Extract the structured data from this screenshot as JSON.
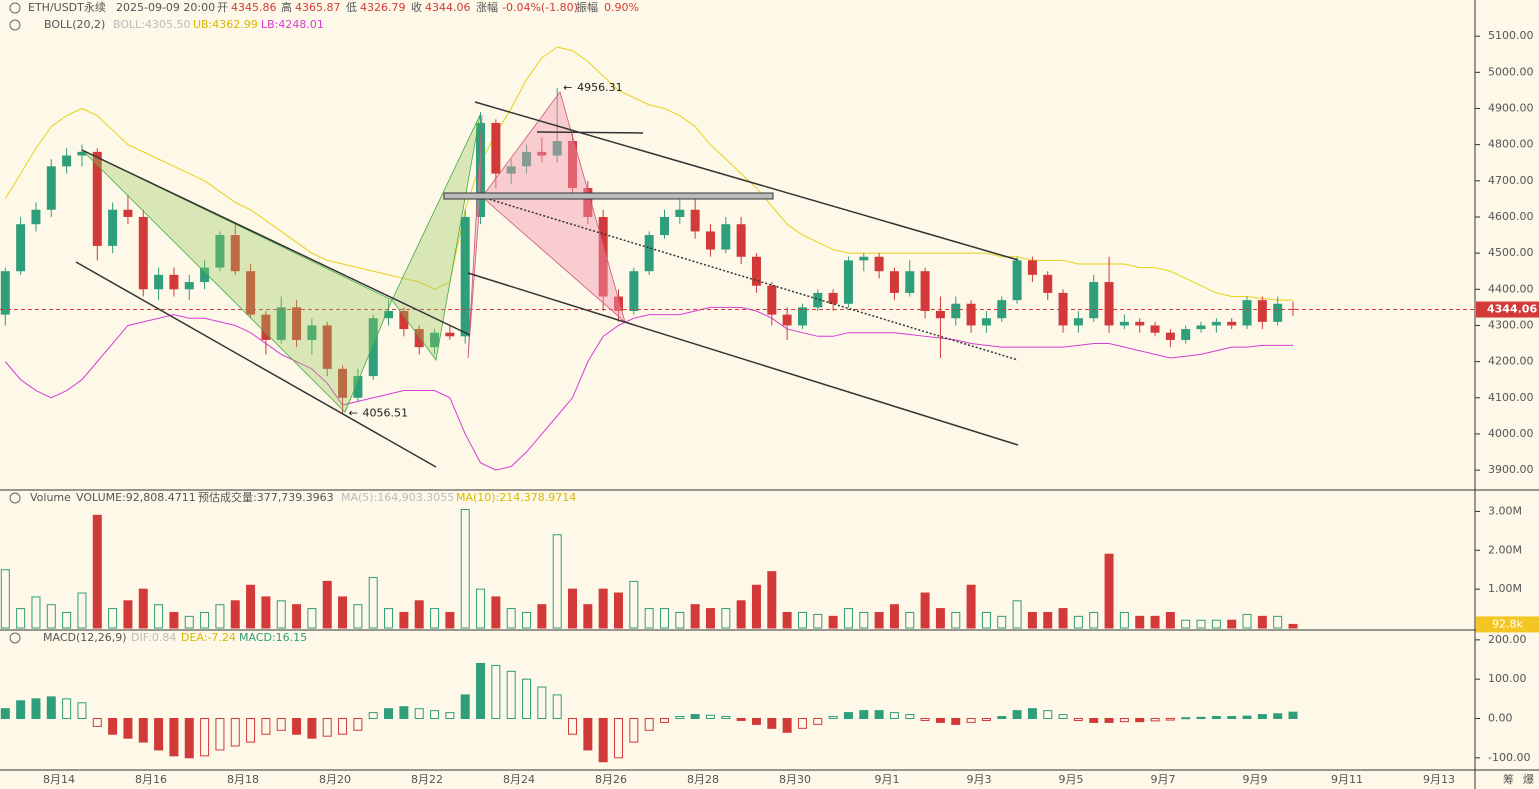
{
  "chart_data": [
    {
      "type": "candlestick",
      "symbol": "ETH/USDT永续",
      "time": "2025-09-09 20:00",
      "open_label": "开",
      "high_label": "高",
      "low_label": "低",
      "close_label": "收",
      "change_label": "涨幅",
      "change": "-0.04%(-1.80)",
      "amplitude_label": "振幅",
      "amplitude": "0.90%",
      "indicator": "BOLL(20,2)",
      "boll": "BOLL:4305.50",
      "ub": "UB:4362.99",
      "lb": "LB:4248.01",
      "up_color": "#2f9e7a",
      "down_color": "#d23a3a",
      "candles": [
        [
          4330,
          4460,
          4300,
          4450
        ],
        [
          4450,
          4600,
          4440,
          4580
        ],
        [
          4580,
          4640,
          4560,
          4620
        ],
        [
          4620,
          4760,
          4600,
          4740
        ],
        [
          4740,
          4790,
          4720,
          4770
        ],
        [
          4770,
          4800,
          4740,
          4780
        ],
        [
          4780,
          4790,
          4480,
          4520
        ],
        [
          4520,
          4640,
          4500,
          4620
        ],
        [
          4620,
          4660,
          4580,
          4600
        ],
        [
          4600,
          4620,
          4380,
          4400
        ],
        [
          4400,
          4460,
          4370,
          4440
        ],
        [
          4440,
          4460,
          4380,
          4400
        ],
        [
          4400,
          4440,
          4370,
          4420
        ],
        [
          4420,
          4480,
          4400,
          4460
        ],
        [
          4460,
          4560,
          4450,
          4550
        ],
        [
          4550,
          4580,
          4440,
          4450
        ],
        [
          4450,
          4470,
          4320,
          4330
        ],
        [
          4330,
          4340,
          4220,
          4260
        ],
        [
          4260,
          4380,
          4250,
          4350
        ],
        [
          4350,
          4370,
          4240,
          4260
        ],
        [
          4260,
          4320,
          4220,
          4300
        ],
        [
          4300,
          4310,
          4160,
          4180
        ],
        [
          4180,
          4190,
          4056.51,
          4100
        ],
        [
          4100,
          4180,
          4090,
          4160
        ],
        [
          4160,
          4330,
          4150,
          4320
        ],
        [
          4320,
          4370,
          4300,
          4340
        ],
        [
          4340,
          4350,
          4270,
          4290
        ],
        [
          4290,
          4300,
          4220,
          4240
        ],
        [
          4240,
          4290,
          4220,
          4280
        ],
        [
          4280,
          4300,
          4260,
          4270
        ],
        [
          4270,
          4620,
          4250,
          4600
        ],
        [
          4600,
          4890,
          4580,
          4860
        ],
        [
          4860,
          4870,
          4680,
          4720
        ],
        [
          4720,
          4760,
          4690,
          4740
        ],
        [
          4740,
          4800,
          4720,
          4780
        ],
        [
          4780,
          4820,
          4750,
          4770
        ],
        [
          4770,
          4956.31,
          4750,
          4810
        ],
        [
          4810,
          4830,
          4660,
          4680
        ],
        [
          4680,
          4700,
          4580,
          4600
        ],
        [
          4600,
          4620,
          4340,
          4380
        ],
        [
          4380,
          4400,
          4310,
          4340
        ],
        [
          4340,
          4460,
          4330,
          4450
        ],
        [
          4450,
          4560,
          4440,
          4550
        ],
        [
          4550,
          4620,
          4540,
          4600
        ],
        [
          4600,
          4650,
          4580,
          4620
        ],
        [
          4620,
          4660,
          4540,
          4560
        ],
        [
          4560,
          4580,
          4490,
          4510
        ],
        [
          4510,
          4600,
          4500,
          4580
        ],
        [
          4580,
          4600,
          4470,
          4490
        ],
        [
          4490,
          4500,
          4390,
          4410
        ],
        [
          4410,
          4420,
          4300,
          4330
        ],
        [
          4330,
          4350,
          4260,
          4300
        ],
        [
          4300,
          4360,
          4290,
          4350
        ],
        [
          4350,
          4400,
          4340,
          4390
        ],
        [
          4390,
          4400,
          4340,
          4360
        ],
        [
          4360,
          4490,
          4350,
          4480
        ],
        [
          4480,
          4500,
          4450,
          4490
        ],
        [
          4490,
          4500,
          4430,
          4450
        ],
        [
          4450,
          4460,
          4370,
          4390
        ],
        [
          4390,
          4480,
          4380,
          4450
        ],
        [
          4450,
          4460,
          4320,
          4340
        ],
        [
          4340,
          4380,
          4210,
          4320
        ],
        [
          4320,
          4380,
          4300,
          4360
        ],
        [
          4360,
          4370,
          4280,
          4300
        ],
        [
          4300,
          4340,
          4280,
          4320
        ],
        [
          4320,
          4380,
          4310,
          4370
        ],
        [
          4370,
          4490,
          4360,
          4480
        ],
        [
          4480,
          4490,
          4420,
          4440
        ],
        [
          4440,
          4450,
          4370,
          4390
        ],
        [
          4390,
          4400,
          4280,
          4300
        ],
        [
          4300,
          4340,
          4280,
          4320
        ],
        [
          4320,
          4440,
          4310,
          4420
        ],
        [
          4420,
          4490,
          4280,
          4300
        ],
        [
          4300,
          4330,
          4290,
          4310
        ],
        [
          4310,
          4320,
          4280,
          4300
        ],
        [
          4300,
          4310,
          4270,
          4280
        ],
        [
          4280,
          4290,
          4240,
          4260
        ],
        [
          4260,
          4300,
          4250,
          4290
        ],
        [
          4290,
          4310,
          4280,
          4300
        ],
        [
          4300,
          4320,
          4280,
          4310
        ],
        [
          4310,
          4320,
          4290,
          4300
        ],
        [
          4300,
          4380,
          4290,
          4370
        ],
        [
          4370,
          4380,
          4290,
          4310
        ],
        [
          4310,
          4380,
          4300,
          4360
        ],
        [
          4345.86,
          4365.87,
          4326.79,
          4344.06
        ]
      ],
      "boll_upper": {
        "color": "#e8d21a",
        "values": [
          4650,
          4720,
          4790,
          4850,
          4880,
          4900,
          4880,
          4840,
          4800,
          4780,
          4760,
          4740,
          4720,
          4700,
          4670,
          4640,
          4620,
          4590,
          4560,
          4530,
          4500,
          4480,
          4470,
          4460,
          4450,
          4440,
          4430,
          4420,
          4400,
          4420,
          4620,
          4750,
          4830,
          4900,
          4980,
          5040,
          5070,
          5060,
          5030,
          4990,
          4950,
          4930,
          4910,
          4900,
          4880,
          4850,
          4800,
          4760,
          4720,
          4680,
          4630,
          4580,
          4550,
          4530,
          4510,
          4500,
          4500,
          4500,
          4500,
          4500,
          4500,
          4500,
          4500,
          4500,
          4500,
          4490,
          4490,
          4480,
          4480,
          4480,
          4470,
          4470,
          4470,
          4470,
          4460,
          4460,
          4450,
          4430,
          4410,
          4390,
          4380,
          4380,
          4375,
          4370,
          4370
        ]
      },
      "boll_lower": {
        "color": "#d63cd6",
        "values": [
          4200,
          4150,
          4120,
          4100,
          4120,
          4150,
          4200,
          4250,
          4300,
          4310,
          4320,
          4330,
          4320,
          4320,
          4310,
          4300,
          4280,
          4250,
          4220,
          4200,
          4180,
          4140,
          4080,
          4090,
          4100,
          4110,
          4120,
          4120,
          4120,
          4100,
          4000,
          3920,
          3900,
          3910,
          3950,
          4000,
          4050,
          4100,
          4200,
          4270,
          4300,
          4320,
          4330,
          4330,
          4330,
          4340,
          4350,
          4350,
          4350,
          4340,
          4320,
          4290,
          4280,
          4270,
          4270,
          4280,
          4280,
          4280,
          4280,
          4275,
          4270,
          4265,
          4260,
          4250,
          4245,
          4240,
          4240,
          4240,
          4240,
          4240,
          4245,
          4250,
          4250,
          4240,
          4230,
          4220,
          4210,
          4215,
          4220,
          4230,
          4240,
          4240,
          4245,
          4245,
          4245
        ]
      },
      "ylim": [
        3845,
        5200
      ],
      "yticks": [
        {
          "value": 3900,
          "label": "3900.00"
        },
        {
          "value": 4000,
          "label": "4000.00"
        },
        {
          "value": 4100,
          "label": "4100.00"
        },
        {
          "value": 4200,
          "label": "4200.00"
        },
        {
          "value": 4300,
          "label": "4300.00"
        },
        {
          "value": 4400,
          "label": "4400.00"
        },
        {
          "value": 4500,
          "label": "4500.00"
        },
        {
          "value": 4600,
          "label": "4600.00"
        },
        {
          "value": 4700,
          "label": "4700.00"
        },
        {
          "value": 4800,
          "label": "4800.00"
        },
        {
          "value": 4900,
          "label": "4900.00"
        },
        {
          "value": 5000,
          "label": "5000.00"
        },
        {
          "value": 5100,
          "label": "5100.00"
        }
      ],
      "xticks": [
        "8月14",
        "8月16",
        "8月18",
        "8月20",
        "8月22",
        "8月24",
        "8月26",
        "8月28",
        "8月30",
        "9月1",
        "9月3",
        "9月5",
        "9月7",
        "9月9",
        "9月11",
        "9月13"
      ],
      "footer": [
        "筹",
        "爆"
      ]
    },
    {
      "type": "bar",
      "color_by": "candle",
      "title": "Volume",
      "volume": "VOLUME:92,808.4711",
      "estimate": "预估成交量:377,739.3963",
      "ma5": "MA(5):164,903.3055",
      "ma10": "MA(10):214,378.9714",
      "values": [
        1500000,
        500000,
        800000,
        600000,
        400000,
        900000,
        2900000,
        500000,
        700000,
        1000000,
        600000,
        400000,
        300000,
        400000,
        600000,
        700000,
        1100000,
        800000,
        700000,
        600000,
        500000,
        1200000,
        800000,
        600000,
        1300000,
        500000,
        400000,
        700000,
        500000,
        400000,
        3050000,
        1000000,
        800000,
        500000,
        400000,
        600000,
        2400000,
        1000000,
        600000,
        1000000,
        900000,
        1200000,
        500000,
        500000,
        400000,
        600000,
        500000,
        500000,
        700000,
        1100000,
        1450000,
        400000,
        400000,
        350000,
        300000,
        500000,
        400000,
        400000,
        600000,
        400000,
        900000,
        500000,
        400000,
        1100000,
        400000,
        300000,
        700000,
        400000,
        400000,
        500000,
        300000,
        400000,
        1900000,
        400000,
        300000,
        300000,
        400000,
        200000,
        200000,
        200000,
        200000,
        350000,
        300000,
        300000,
        92808.4711
      ],
      "current": {
        "value": 92808.4711,
        "label": "92.8k"
      },
      "ylim": [
        0,
        3500000
      ],
      "yticks": [
        {
          "value": 1000000,
          "label": "1.00M"
        },
        {
          "value": 2000000,
          "label": "2.00M"
        },
        {
          "value": 3000000,
          "label": "3.00M"
        }
      ]
    },
    {
      "type": "bar",
      "color_by": "sign",
      "title": "MACD(12,26,9)",
      "dif": "DIF:0.84",
      "dea": "DEA:-7.24",
      "macd": "MACD:16.15",
      "up_color": "#2f9e7a",
      "down_color": "#d23a3a",
      "values": [
        25,
        45,
        50,
        55,
        50,
        40,
        -20,
        -40,
        -50,
        -60,
        -80,
        -95,
        -100,
        -95,
        -80,
        -70,
        -60,
        -40,
        -30,
        -40,
        -50,
        -45,
        -40,
        -30,
        15,
        25,
        30,
        25,
        20,
        15,
        60,
        140,
        135,
        120,
        100,
        80,
        60,
        -40,
        -80,
        -110,
        -100,
        -60,
        -30,
        -10,
        5,
        10,
        8,
        5,
        -5,
        -15,
        -25,
        -35,
        -25,
        -15,
        5,
        15,
        20,
        20,
        15,
        10,
        -5,
        -10,
        -15,
        -10,
        -5,
        5,
        20,
        25,
        20,
        10,
        -5,
        -10,
        -10,
        -8,
        -8,
        -6,
        -4,
        2,
        3,
        5,
        5,
        6,
        10,
        12,
        16.15
      ],
      "ylim": [
        -131,
        220
      ],
      "yticks": [
        {
          "value": -100,
          "label": "-100.00"
        },
        {
          "value": 0,
          "label": "0.00"
        },
        {
          "value": 100,
          "label": "100.00"
        },
        {
          "value": 200,
          "label": "200.00"
        }
      ]
    }
  ]
}
